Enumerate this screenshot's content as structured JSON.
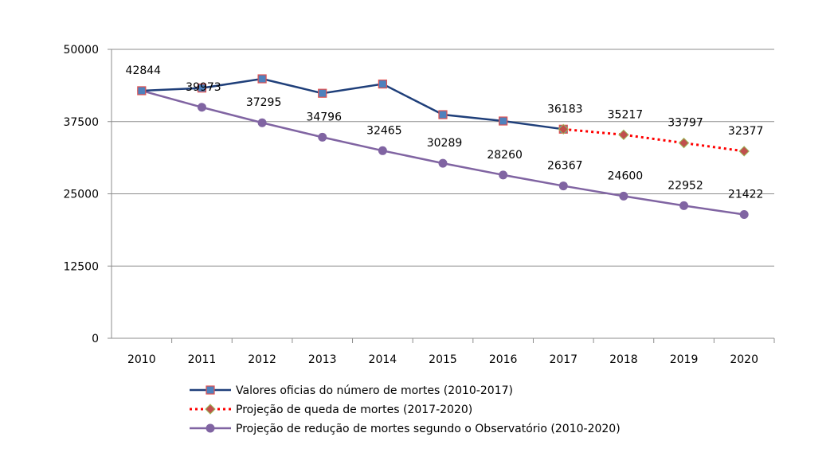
{
  "chart_data": {
    "type": "line",
    "categories": [
      "2010",
      "2011",
      "2012",
      "2013",
      "2014",
      "2015",
      "2016",
      "2017",
      "2018",
      "2019",
      "2020"
    ],
    "ylim": [
      0,
      50000
    ],
    "yticks": [
      0,
      12500,
      25000,
      37500,
      50000
    ],
    "ytick_labels": [
      "0",
      "12500",
      "25000",
      "37500",
      "50000"
    ],
    "grid": true,
    "legend_position": "bottom",
    "series": [
      {
        "name": "Valores oficias do número de mortes (2010-2017)",
        "color": "#1f3f7a",
        "marker": "square",
        "marker_fill": "#4f81bd",
        "marker_edge": "#e05050",
        "line_style": "solid",
        "values": [
          42844,
          43300,
          44900,
          42400,
          44000,
          38700,
          37600,
          36183,
          null,
          null,
          null
        ]
      },
      {
        "name": "Projeção de queda de mortes (2017-2020)",
        "color": "#ff0000",
        "marker": "diamond",
        "marker_fill": "#c0504d",
        "marker_edge": "#9bbb59",
        "line_style": "dotted",
        "values": [
          null,
          null,
          null,
          null,
          null,
          null,
          null,
          36183,
          35217,
          33797,
          32377
        ],
        "labels": [
          null,
          null,
          null,
          null,
          null,
          null,
          null,
          "36183",
          "35217",
          "33797",
          "32377"
        ]
      },
      {
        "name": "Projeção de redução de mortes segundo o Observatório (2010-2020)",
        "color": "#8064a2",
        "marker": "circle",
        "marker_fill": "#8064a2",
        "marker_edge": "#8064a2",
        "line_style": "solid",
        "values": [
          42844,
          39973,
          37295,
          34796,
          32465,
          30289,
          28260,
          26367,
          24600,
          22952,
          21422
        ],
        "labels": [
          "42844",
          "39973",
          "37295",
          "34796",
          "32465",
          "30289",
          "28260",
          "26367",
          "24600",
          "22952",
          "21422"
        ]
      }
    ]
  }
}
